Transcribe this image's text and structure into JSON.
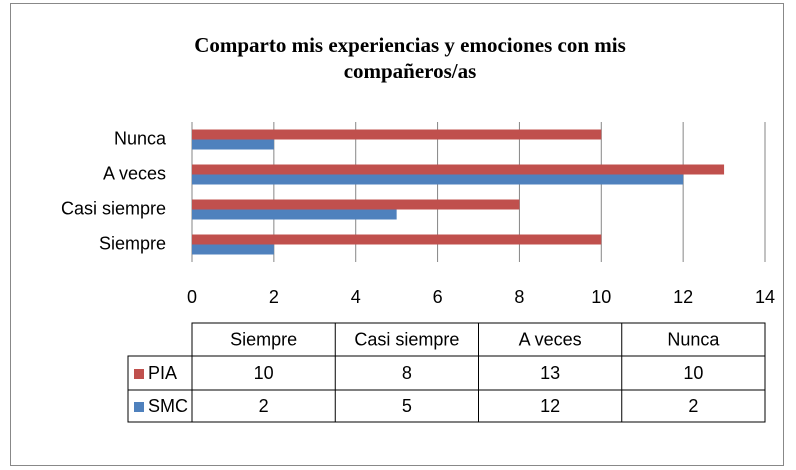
{
  "chart_data": {
    "type": "bar",
    "orientation": "horizontal",
    "title": "Comparto mis experiencias y emociones con mis compañeros/as",
    "categories": [
      "Siempre",
      "Casi siempre",
      "A veces",
      "Nunca"
    ],
    "series": [
      {
        "name": "PIA",
        "color": "#c0504d",
        "values": [
          10,
          8,
          13,
          10
        ]
      },
      {
        "name": "SMC",
        "color": "#4f81bd",
        "values": [
          2,
          5,
          12,
          2
        ]
      }
    ],
    "xlim": [
      0,
      14
    ],
    "xticks": [
      0,
      2,
      4,
      6,
      8,
      10,
      12,
      14
    ],
    "grid": true,
    "data_table": true
  }
}
